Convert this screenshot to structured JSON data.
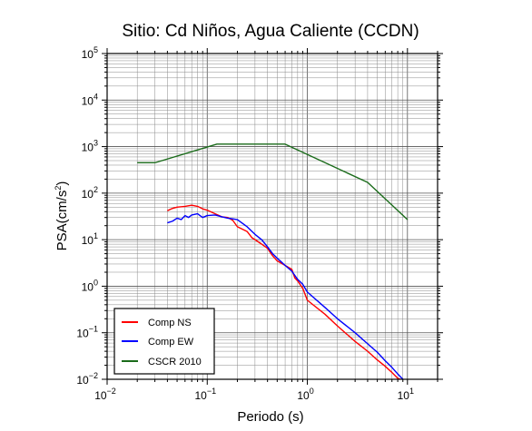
{
  "chart_data": {
    "type": "line",
    "title": "Sitio: Cd Niños, Agua Caliente (CCDN)",
    "xlabel": "Periodo (s)",
    "ylabel": "PSA(cm/s",
    "ylabel_sup": "2",
    "ylabel_close": ")",
    "x_scale": "log",
    "y_scale": "log",
    "xlim": [
      0.01,
      20
    ],
    "ylim": [
      0.01,
      100000
    ],
    "grid": true,
    "legend_position": "bottom-left",
    "x_ticks": [
      {
        "base": "10",
        "exp": "−2",
        "value": 0.01
      },
      {
        "base": "10",
        "exp": "−1",
        "value": 0.1
      },
      {
        "base": "10",
        "exp": "0",
        "value": 1
      },
      {
        "base": "10",
        "exp": "1",
        "value": 10
      }
    ],
    "y_ticks": [
      {
        "base": "10",
        "exp": "−2",
        "value": 0.01
      },
      {
        "base": "10",
        "exp": "−1",
        "value": 0.1
      },
      {
        "base": "10",
        "exp": "0",
        "value": 1
      },
      {
        "base": "10",
        "exp": "1",
        "value": 10
      },
      {
        "base": "10",
        "exp": "2",
        "value": 100
      },
      {
        "base": "10",
        "exp": "3",
        "value": 1000
      },
      {
        "base": "10",
        "exp": "4",
        "value": 10000
      },
      {
        "base": "10",
        "exp": "5",
        "value": 100000
      }
    ],
    "series": [
      {
        "name": "Comp NS",
        "color": "#ff0000",
        "points": [
          [
            0.04,
            42
          ],
          [
            0.045,
            47
          ],
          [
            0.05,
            50
          ],
          [
            0.06,
            52
          ],
          [
            0.07,
            55
          ],
          [
            0.08,
            52
          ],
          [
            0.09,
            46
          ],
          [
            0.1,
            43
          ],
          [
            0.12,
            36
          ],
          [
            0.14,
            31
          ],
          [
            0.16,
            30
          ],
          [
            0.18,
            26
          ],
          [
            0.2,
            19
          ],
          [
            0.25,
            15
          ],
          [
            0.28,
            11
          ],
          [
            0.3,
            10
          ],
          [
            0.35,
            8
          ],
          [
            0.4,
            6.5
          ],
          [
            0.45,
            4.5
          ],
          [
            0.5,
            3.5
          ],
          [
            0.6,
            2.8
          ],
          [
            0.7,
            2.3
          ],
          [
            0.75,
            1.5
          ],
          [
            0.8,
            1.3
          ],
          [
            0.9,
            0.9
          ],
          [
            1.0,
            0.5
          ],
          [
            1.5,
            0.25
          ],
          [
            2,
            0.14
          ],
          [
            3,
            0.065
          ],
          [
            4,
            0.04
          ],
          [
            5,
            0.026
          ],
          [
            6,
            0.019
          ],
          [
            7,
            0.014
          ],
          [
            8,
            0.0105
          ],
          [
            8.5,
            0.01
          ]
        ]
      },
      {
        "name": "Comp EW",
        "color": "#0000ff",
        "points": [
          [
            0.04,
            23
          ],
          [
            0.045,
            25
          ],
          [
            0.05,
            29
          ],
          [
            0.055,
            27
          ],
          [
            0.06,
            33
          ],
          [
            0.065,
            30
          ],
          [
            0.07,
            34
          ],
          [
            0.08,
            36
          ],
          [
            0.09,
            30
          ],
          [
            0.1,
            33
          ],
          [
            0.12,
            34
          ],
          [
            0.14,
            31
          ],
          [
            0.16,
            29
          ],
          [
            0.18,
            28
          ],
          [
            0.2,
            27
          ],
          [
            0.25,
            19
          ],
          [
            0.3,
            13
          ],
          [
            0.35,
            10
          ],
          [
            0.4,
            7
          ],
          [
            0.45,
            5
          ],
          [
            0.5,
            4
          ],
          [
            0.6,
            2.8
          ],
          [
            0.7,
            2.1
          ],
          [
            0.8,
            1.4
          ],
          [
            0.9,
            1.1
          ],
          [
            1.0,
            0.75
          ],
          [
            1.5,
            0.35
          ],
          [
            2,
            0.2
          ],
          [
            3,
            0.1
          ],
          [
            4,
            0.058
          ],
          [
            5,
            0.038
          ],
          [
            6,
            0.025
          ],
          [
            7,
            0.018
          ],
          [
            8,
            0.013
          ],
          [
            9,
            0.01
          ]
        ]
      },
      {
        "name": "CSCR 2010",
        "color": "#1a6b1a",
        "points": [
          [
            0.02,
            450
          ],
          [
            0.03,
            450
          ],
          [
            0.125,
            1130
          ],
          [
            0.6,
            1130
          ],
          [
            4,
            170
          ],
          [
            10,
            27
          ]
        ]
      }
    ]
  }
}
